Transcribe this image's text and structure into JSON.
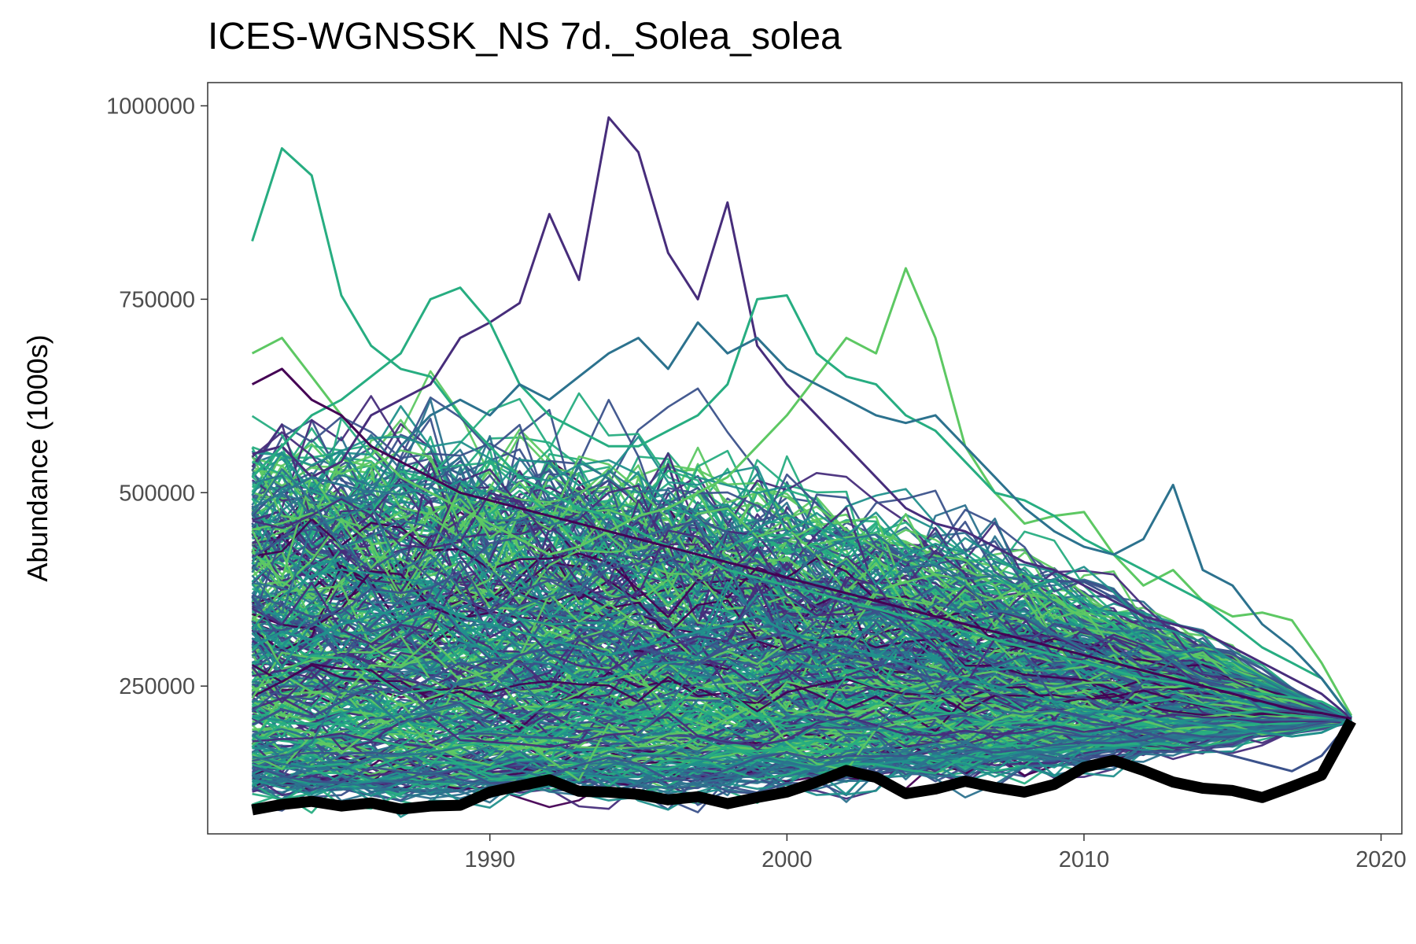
{
  "chart_data": {
    "type": "line",
    "title": "ICES-WGNSSK_NS 7d._Solea_solea",
    "xlabel": "",
    "ylabel": "Abundance (1000s)",
    "x_ticks": [
      1990,
      2000,
      2010,
      2020
    ],
    "y_ticks": [
      250000,
      500000,
      750000,
      1000000
    ],
    "x_tick_labels": [
      "1990",
      "2000",
      "2010",
      "2020"
    ],
    "y_tick_labels": [
      "250000",
      "500000",
      "750000",
      "1000000"
    ],
    "xlim": [
      1980.5,
      2020.7
    ],
    "ylim": [
      59000,
      1030000
    ],
    "grid": false,
    "legend": "none",
    "x": [
      1982,
      1983,
      1984,
      1985,
      1986,
      1987,
      1988,
      1989,
      1990,
      1991,
      1992,
      1993,
      1994,
      1995,
      1996,
      1997,
      1998,
      1999,
      2000,
      2001,
      2002,
      2003,
      2004,
      2005,
      2006,
      2007,
      2008,
      2009,
      2010,
      2011,
      2012,
      2013,
      2014,
      2015,
      2016,
      2017,
      2018,
      2019
    ],
    "highlight_series": {
      "color": "#000000",
      "values": [
        90000,
        97000,
        101000,
        95000,
        99000,
        91000,
        95000,
        96000,
        113000,
        121000,
        129000,
        114000,
        113000,
        110000,
        103000,
        107000,
        98000,
        106000,
        113000,
        126000,
        141000,
        132000,
        111000,
        117000,
        127000,
        119000,
        113000,
        123000,
        145000,
        154000,
        141000,
        126000,
        118000,
        115000,
        106000,
        120000,
        135000,
        205000
      ]
    },
    "ensemble": {
      "count": 420,
      "palette": [
        "#440154",
        "#472D7B",
        "#3B528B",
        "#2C728E",
        "#21908C",
        "#27AD81",
        "#5DC863"
      ],
      "sample_series": [
        {
          "color": "#27AD81",
          "values": [
            825000,
            945000,
            910000,
            755000,
            690000,
            660000,
            650000,
            600000,
            560000,
            520000,
            500000,
            480000,
            470000,
            450000,
            430000,
            420000,
            400000,
            390000,
            380000,
            370000,
            360000,
            350000,
            340000,
            330000,
            320000,
            310000,
            300000,
            290000,
            280000,
            270000,
            260000,
            255000,
            250000,
            245000,
            240000,
            235000,
            230000,
            210000
          ]
        },
        {
          "color": "#472D7B",
          "values": [
            550000,
            560000,
            520000,
            540000,
            600000,
            620000,
            640000,
            700000,
            720000,
            745000,
            860000,
            775000,
            985000,
            940000,
            810000,
            750000,
            875000,
            690000,
            640000,
            600000,
            560000,
            520000,
            480000,
            460000,
            450000,
            430000,
            410000,
            400000,
            380000,
            360000,
            340000,
            330000,
            320000,
            300000,
            280000,
            260000,
            240000,
            208000
          ]
        },
        {
          "color": "#5DC863",
          "values": [
            680000,
            700000,
            650000,
            600000,
            560000,
            520000,
            500000,
            480000,
            460000,
            440000,
            420000,
            430000,
            450000,
            470000,
            480000,
            500000,
            520000,
            560000,
            600000,
            650000,
            700000,
            680000,
            790000,
            700000,
            560000,
            500000,
            460000,
            470000,
            475000,
            420000,
            380000,
            400000,
            360000,
            340000,
            345000,
            335000,
            280000,
            212000
          ]
        },
        {
          "color": "#27AD81",
          "values": [
            520000,
            560000,
            600000,
            620000,
            650000,
            680000,
            750000,
            765000,
            720000,
            640000,
            600000,
            580000,
            560000,
            560000,
            580000,
            600000,
            640000,
            750000,
            755000,
            680000,
            650000,
            640000,
            600000,
            580000,
            540000,
            500000,
            490000,
            470000,
            440000,
            420000,
            400000,
            380000,
            360000,
            330000,
            300000,
            280000,
            260000,
            210000
          ]
        },
        {
          "color": "#2C728E",
          "values": [
            480000,
            500000,
            520000,
            510000,
            500000,
            560000,
            600000,
            620000,
            600000,
            640000,
            620000,
            650000,
            680000,
            700000,
            660000,
            720000,
            680000,
            700000,
            660000,
            640000,
            620000,
            600000,
            590000,
            600000,
            560000,
            520000,
            480000,
            450000,
            430000,
            420000,
            440000,
            510000,
            400000,
            380000,
            330000,
            300000,
            260000,
            209000
          ]
        },
        {
          "color": "#3B528B",
          "values": [
            200000,
            220000,
            210000,
            230000,
            250000,
            240000,
            260000,
            280000,
            270000,
            290000,
            300000,
            310000,
            320000,
            300000,
            290000,
            280000,
            300000,
            310000,
            320000,
            300000,
            290000,
            280000,
            270000,
            260000,
            250000,
            240000,
            230000,
            220000,
            210000,
            200000,
            190000,
            180000,
            170000,
            160000,
            150000,
            140000,
            160000,
            206000
          ]
        },
        {
          "color": "#21908C",
          "values": [
            300000,
            320000,
            310000,
            330000,
            340000,
            350000,
            360000,
            340000,
            330000,
            320000,
            310000,
            300000,
            290000,
            300000,
            310000,
            320000,
            330000,
            340000,
            320000,
            310000,
            300000,
            290000,
            280000,
            270000,
            260000,
            250000,
            240000,
            230000,
            220000,
            215000,
            210000,
            205000,
            200000,
            195000,
            190000,
            185000,
            190000,
            207000
          ]
        },
        {
          "color": "#440154",
          "values": [
            640000,
            660000,
            620000,
            600000,
            560000,
            540000,
            520000,
            500000,
            490000,
            480000,
            470000,
            460000,
            450000,
            440000,
            430000,
            420000,
            410000,
            400000,
            390000,
            380000,
            370000,
            360000,
            350000,
            340000,
            330000,
            320000,
            310000,
            300000,
            290000,
            280000,
            270000,
            260000,
            250000,
            240000,
            230000,
            220000,
            215000,
            208000
          ]
        }
      ]
    }
  }
}
